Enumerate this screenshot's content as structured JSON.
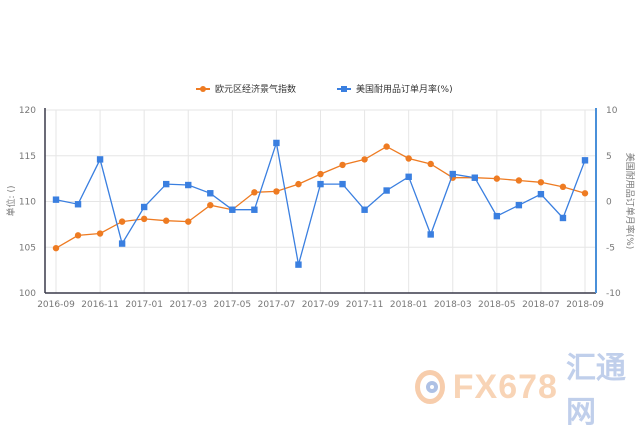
{
  "legend": {
    "series1": "欧元区经济景气指数",
    "series2": "美国耐用品订单月率(%)"
  },
  "axes": {
    "left_title": "单位: ()",
    "right_title": "美国耐用品订单月率(%)"
  },
  "watermark": {
    "brand": "FX678",
    "cn": "汇通网"
  },
  "colors": {
    "series1": "#ee7b22",
    "series2": "#3a7fe0",
    "grid": "#e6e6e6",
    "left_axis": "#3a3a4a",
    "right_axis": "#4a90d9"
  },
  "chart_data": {
    "type": "line",
    "title": "",
    "xlabel": "",
    "ylabel": "单位: ()",
    "y2label": "美国耐用品订单月率(%)",
    "x": [
      "2016-09",
      "2016-10",
      "2016-11",
      "2016-12",
      "2017-01",
      "2017-02",
      "2017-03",
      "2017-04",
      "2017-05",
      "2017-06",
      "2017-07",
      "2017-08",
      "2017-09",
      "2017-10",
      "2017-11",
      "2017-12",
      "2018-01",
      "2018-02",
      "2018-03",
      "2018-04",
      "2018-05",
      "2018-06",
      "2018-07",
      "2018-08",
      "2018-09"
    ],
    "x_tick_labels": [
      "2016-09",
      "2016-11",
      "2017-01",
      "2017-03",
      "2017-05",
      "2017-07",
      "2017-09",
      "2017-11",
      "2018-01",
      "2018-03",
      "2018-05",
      "2018-07",
      "2018-09"
    ],
    "series": [
      {
        "name": "欧元区经济景气指数",
        "axis": "left",
        "marker": "circle",
        "values": [
          104.9,
          106.3,
          106.5,
          107.8,
          108.1,
          107.9,
          107.8,
          109.6,
          109.1,
          111.0,
          111.1,
          111.9,
          113.0,
          114.0,
          114.6,
          116.0,
          114.7,
          114.1,
          112.6,
          112.6,
          112.5,
          112.3,
          112.1,
          111.6,
          110.9
        ]
      },
      {
        "name": "美国耐用品订单月率(%)",
        "axis": "right",
        "marker": "square",
        "values": [
          0.2,
          -0.3,
          4.6,
          -4.6,
          -0.6,
          1.9,
          1.8,
          0.9,
          -0.9,
          -0.9,
          6.4,
          -6.9,
          1.9,
          1.9,
          -0.9,
          1.2,
          2.7,
          -3.6,
          3.0,
          2.6,
          -1.6,
          -0.4,
          0.8,
          -1.8,
          4.5
        ]
      }
    ],
    "ylim": [
      100,
      120
    ],
    "yticks": [
      100,
      105,
      110,
      115,
      120
    ],
    "y2lim": [
      -10,
      10
    ],
    "y2ticks": [
      -10,
      -5,
      0,
      5,
      10
    ],
    "grid": true,
    "legend_position": "top"
  }
}
